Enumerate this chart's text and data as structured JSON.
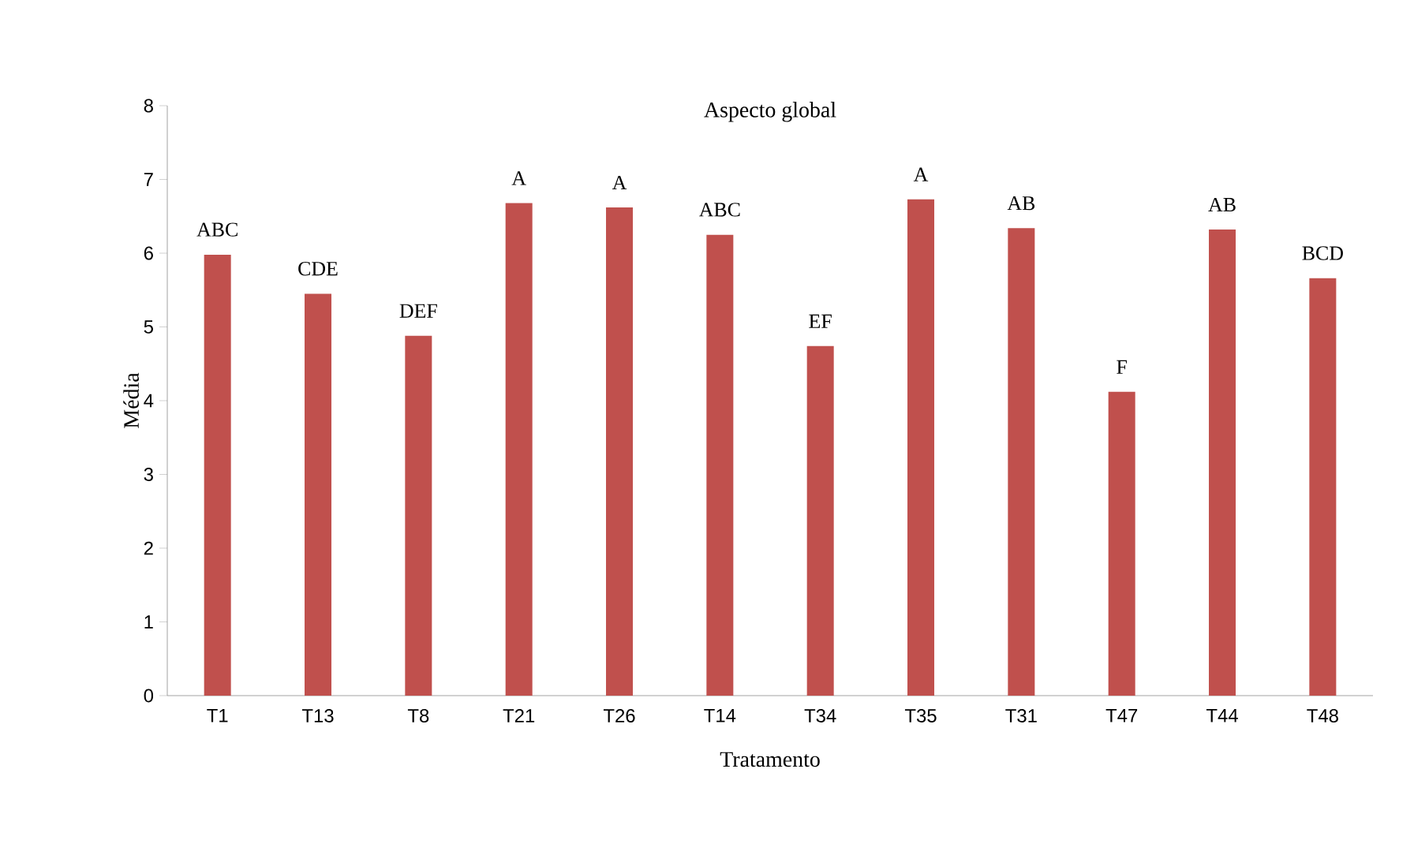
{
  "chart_data": {
    "type": "bar",
    "title": "Aspecto global",
    "xlabel": "Tratamento",
    "ylabel": "Média",
    "categories": [
      "T1",
      "T13",
      "T8",
      "T21",
      "T26",
      "T14",
      "T34",
      "T35",
      "T31",
      "T47",
      "T44",
      "T48"
    ],
    "values": [
      5.98,
      5.45,
      4.88,
      6.68,
      6.62,
      6.25,
      4.74,
      6.73,
      6.34,
      4.12,
      6.32,
      5.66
    ],
    "value_labels": [
      "ABC",
      "CDE",
      "DEF",
      "A",
      "A",
      "ABC",
      "EF",
      "A",
      "AB",
      "F",
      "AB",
      "BCD"
    ],
    "color": "#c0504d",
    "ylim": [
      0,
      8
    ],
    "yticks": [
      0,
      1,
      2,
      3,
      4,
      5,
      6,
      7,
      8
    ],
    "grid": false
  }
}
